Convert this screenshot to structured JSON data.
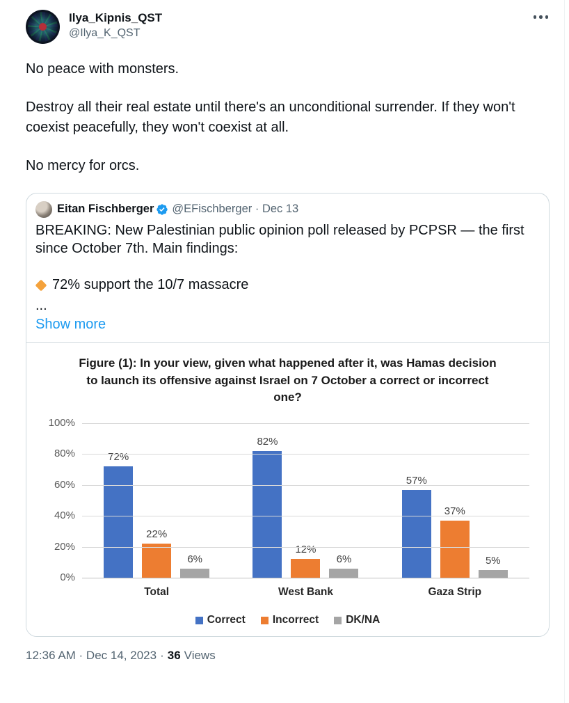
{
  "tweet": {
    "author": {
      "name": "Ilya_Kipnis_QST",
      "handle": "@Ilya_K_QST"
    },
    "body": [
      "No peace with monsters.",
      "Destroy all their real estate until there's an unconditional surrender. If they won't coexist peacefully, they won't coexist at all.",
      "No mercy for orcs."
    ]
  },
  "quote": {
    "author": {
      "name": "Eitan Fischberger",
      "handle": "@EFischberger",
      "separator": "·",
      "date": "Dec 13"
    },
    "body_intro": "BREAKING: New Palestinian public opinion poll released by PCPSR — the first since October 7th. Main findings:",
    "bullet_text": "72% support the 10/7 massacre",
    "ellipsis": "...",
    "show_more_label": "Show more"
  },
  "chart_data": {
    "type": "bar",
    "title": "Figure (1): In your view, given what happened after it, was Hamas decision to launch its offensive against Israel on 7 October a correct or incorrect one?",
    "categories": [
      "Total",
      "West Bank",
      "Gaza Strip"
    ],
    "series": [
      {
        "name": "Correct",
        "color": "#4472C4",
        "values": [
          72,
          82,
          57
        ]
      },
      {
        "name": "Incorrect",
        "color": "#ED7D31",
        "values": [
          22,
          12,
          37
        ]
      },
      {
        "name": "DK/NA",
        "color": "#A5A5A5",
        "values": [
          6,
          6,
          5
        ]
      }
    ],
    "value_label_suffix": "%",
    "ylim": [
      0,
      100
    ],
    "ytick_step": 20,
    "ytick_suffix": "%",
    "grid": true,
    "legend_position": "bottom"
  },
  "footer": {
    "timestamp": "12:36 AM · Dec 14, 2023",
    "separator": "·",
    "views_count": "36",
    "views_label": "Views"
  },
  "colors": {
    "link_blue": "#1d9bf0",
    "verified_blue": "#1d9bf0",
    "border": "#cfd9de",
    "text_gray": "#536471"
  }
}
